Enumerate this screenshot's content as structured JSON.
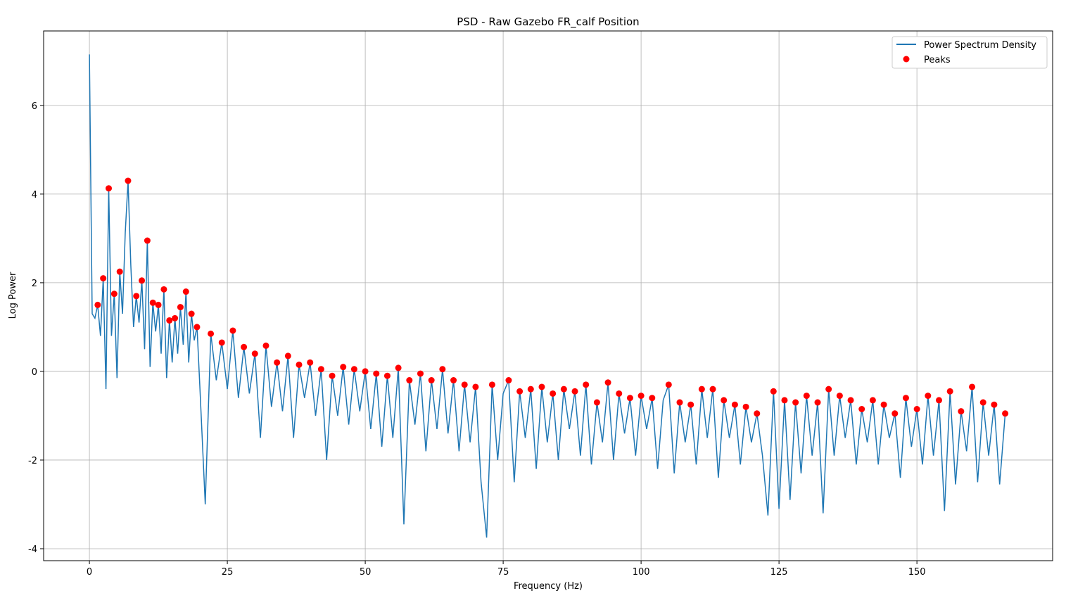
{
  "chart_data": {
    "type": "line",
    "title": "PSD - Raw Gazebo FR_calf Position",
    "x_label": "Frequency (Hz)",
    "y_label": "Log Power",
    "xlim": [
      -8.3,
      174.6
    ],
    "ylim": [
      -4.27,
      7.68
    ],
    "xticks": [
      0,
      25,
      50,
      75,
      100,
      125,
      150
    ],
    "yticks": [
      -4,
      -2,
      0,
      2,
      4,
      6
    ],
    "grid": true,
    "legend": "upper right",
    "series": [
      {
        "name": "Power Spectrum Density",
        "kind": "line",
        "color": "#1f77b4",
        "x": [
          0,
          0.5,
          1,
          1.5,
          2,
          2.5,
          3,
          3.5,
          4,
          4.5,
          5,
          5.5,
          6,
          6.5,
          7,
          7.5,
          8,
          8.5,
          9,
          9.5,
          10,
          10.5,
          11,
          11.5,
          12,
          12.5,
          13,
          13.5,
          14,
          14.5,
          15,
          15.5,
          16,
          16.5,
          17,
          17.5,
          18,
          18.5,
          19,
          19.5,
          20,
          21,
          22,
          23,
          24,
          25,
          26,
          27,
          28,
          29,
          30,
          31,
          32,
          33,
          34,
          35,
          36,
          37,
          38,
          39,
          40,
          41,
          42,
          43,
          44,
          45,
          46,
          47,
          48,
          49,
          50,
          51,
          52,
          53,
          54,
          55,
          56,
          57,
          58,
          59,
          60,
          61,
          62,
          63,
          64,
          65,
          66,
          67,
          68,
          69,
          70,
          71,
          72,
          73,
          74,
          75,
          76,
          77,
          78,
          79,
          80,
          81,
          82,
          83,
          84,
          85,
          86,
          87,
          88,
          89,
          90,
          91,
          92,
          93,
          94,
          95,
          96,
          97,
          98,
          99,
          100,
          101,
          102,
          103,
          104,
          105,
          106,
          107,
          108,
          109,
          110,
          111,
          112,
          113,
          114,
          115,
          116,
          117,
          118,
          119,
          120,
          121,
          122,
          123,
          124,
          125,
          126,
          127,
          128,
          129,
          130,
          131,
          132,
          133,
          134,
          135,
          136,
          137,
          138,
          139,
          140,
          141,
          142,
          143,
          144,
          145,
          146,
          147,
          148,
          149,
          150,
          151,
          152,
          153,
          154,
          155,
          156,
          157,
          158,
          159,
          160,
          161,
          162,
          163,
          164,
          165,
          166
        ],
        "values": [
          7.15,
          1.3,
          1.2,
          1.5,
          0.8,
          2.1,
          -0.4,
          4.13,
          0.8,
          1.75,
          -0.15,
          2.25,
          1.3,
          3.13,
          4.3,
          2.4,
          1.0,
          1.7,
          1.1,
          2.05,
          0.5,
          2.95,
          0.1,
          1.55,
          0.9,
          1.5,
          0.4,
          1.85,
          -0.15,
          1.15,
          0.2,
          1.2,
          0.4,
          1.45,
          0.6,
          1.8,
          0.2,
          1.3,
          0.7,
          1.0,
          -0.3,
          -3.0,
          0.85,
          -0.2,
          0.65,
          -0.4,
          0.92,
          -0.6,
          0.55,
          -0.5,
          0.4,
          -1.5,
          0.58,
          -0.8,
          0.2,
          -0.9,
          0.35,
          -1.5,
          0.15,
          -0.6,
          0.2,
          -1.0,
          0.05,
          -2.0,
          -0.1,
          -1.0,
          0.1,
          -1.2,
          0.05,
          -0.9,
          0.0,
          -1.3,
          -0.05,
          -1.7,
          -0.1,
          -1.5,
          0.08,
          -3.45,
          -0.2,
          -1.2,
          -0.05,
          -1.8,
          -0.2,
          -1.3,
          0.05,
          -1.4,
          -0.2,
          -1.8,
          -0.3,
          -1.6,
          -0.35,
          -2.5,
          -3.75,
          -0.3,
          -2.0,
          -0.5,
          -0.2,
          -2.5,
          -0.45,
          -1.5,
          -0.4,
          -2.2,
          -0.35,
          -1.6,
          -0.5,
          -2.0,
          -0.4,
          -1.3,
          -0.45,
          -1.9,
          -0.3,
          -2.1,
          -0.7,
          -1.6,
          -0.25,
          -2.0,
          -0.5,
          -1.4,
          -0.6,
          -1.9,
          -0.55,
          -1.3,
          -0.6,
          -2.2,
          -0.65,
          -0.3,
          -2.3,
          -0.7,
          -1.6,
          -0.75,
          -2.1,
          -0.4,
          -1.5,
          -0.4,
          -2.4,
          -0.65,
          -1.5,
          -0.75,
          -2.1,
          -0.8,
          -1.6,
          -0.95,
          -1.9,
          -3.25,
          -0.45,
          -3.1,
          -0.65,
          -2.9,
          -0.7,
          -2.3,
          -0.55,
          -1.9,
          -0.7,
          -3.2,
          -0.4,
          -1.9,
          -0.55,
          -1.5,
          -0.65,
          -2.1,
          -0.85,
          -1.6,
          -0.65,
          -2.1,
          -0.75,
          -1.5,
          -0.95,
          -2.4,
          -0.6,
          -1.7,
          -0.85,
          -2.1,
          -0.55,
          -1.9,
          -0.65,
          -3.15,
          -0.45,
          -2.55,
          -0.9,
          -1.8,
          -0.35,
          -2.5,
          -0.7,
          -1.9,
          -0.75,
          -2.55,
          -0.95
        ]
      },
      {
        "name": "Peaks",
        "kind": "scatter",
        "color": "#ff0000",
        "x": [
          1.5,
          2.5,
          3.5,
          4.5,
          5.5,
          7,
          8.5,
          9.5,
          10.5,
          11.5,
          12.5,
          13.5,
          14.5,
          15.5,
          16.5,
          17.5,
          18.5,
          19.5,
          22,
          24,
          26,
          28,
          30,
          32,
          34,
          36,
          38,
          40,
          42,
          44,
          46,
          48,
          50,
          52,
          54,
          56,
          58,
          60,
          62,
          64,
          66,
          68,
          70,
          73,
          76,
          78,
          80,
          82,
          84,
          86,
          88,
          90,
          92,
          94,
          96,
          98,
          100,
          102,
          105,
          107,
          109,
          111,
          113,
          115,
          117,
          119,
          121,
          124,
          126,
          128,
          130,
          132,
          134,
          136,
          138,
          140,
          142,
          144,
          146,
          148,
          150,
          152,
          154,
          156,
          158,
          160,
          162,
          164,
          166
        ],
        "values": [
          1.5,
          2.1,
          4.13,
          1.75,
          2.25,
          4.3,
          1.7,
          2.05,
          2.95,
          1.55,
          1.5,
          1.85,
          1.15,
          1.2,
          1.45,
          1.8,
          1.3,
          1.0,
          0.85,
          0.65,
          0.92,
          0.55,
          0.4,
          0.58,
          0.2,
          0.35,
          0.15,
          0.2,
          0.05,
          -0.1,
          0.1,
          0.05,
          0.0,
          -0.05,
          -0.1,
          0.08,
          -0.2,
          -0.05,
          -0.2,
          0.05,
          -0.2,
          -0.3,
          -0.35,
          -0.3,
          -0.2,
          -0.45,
          -0.4,
          -0.35,
          -0.5,
          -0.4,
          -0.45,
          -0.3,
          -0.7,
          -0.25,
          -0.5,
          -0.6,
          -0.55,
          -0.6,
          -0.3,
          -0.7,
          -0.75,
          -0.4,
          -0.4,
          -0.65,
          -0.75,
          -0.8,
          -0.95,
          -0.45,
          -0.65,
          -0.7,
          -0.55,
          -0.7,
          -0.4,
          -0.55,
          -0.65,
          -0.85,
          -0.65,
          -0.75,
          -0.95,
          -0.6,
          -0.85,
          -0.55,
          -0.65,
          -0.45,
          -0.9,
          -0.35,
          -0.7,
          -0.75,
          -0.95
        ]
      }
    ]
  }
}
